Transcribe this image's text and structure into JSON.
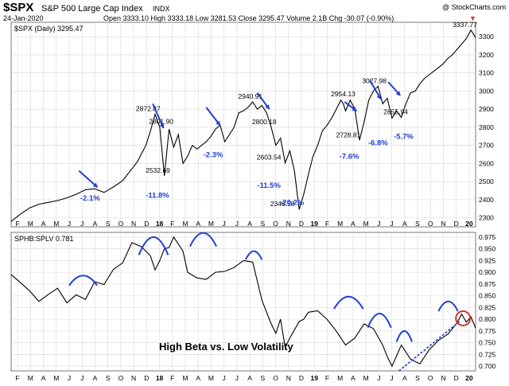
{
  "header": {
    "symbol": "$SPX",
    "name": "S&P 500 Large Cap Index",
    "exchange": "INDX",
    "date": "24-Jan-2020",
    "quote": "Open 3333.10  High 3333.18  Low 3281.53  Close 3295.47  Volume 2.1B  Chg -30.07 (-0.90%)",
    "down_arrow": "▼",
    "watermark": "@ StockCharts.com"
  },
  "colors": {
    "price": "#000000",
    "annotation": "#1f3fd6",
    "highlight": "#d9312b",
    "grid": "#d8d8d8",
    "panel_bg": "#ffffff"
  },
  "chart_data": [
    {
      "type": "line",
      "title": "$SPX (Daily) 3295.47",
      "legend_label": "$SPX (Daily) 3295.47",
      "x_ticks": [
        "F",
        "M",
        "A",
        "M",
        "J",
        "J",
        "A",
        "S",
        "O",
        "N",
        "D",
        "18",
        "F",
        "M",
        "A",
        "M",
        "J",
        "J",
        "A",
        "S",
        "O",
        "N",
        "D",
        "19",
        "F",
        "M",
        "A",
        "M",
        "J",
        "J",
        "A",
        "S",
        "O",
        "N",
        "D",
        "20"
      ],
      "ylim": [
        2250,
        3380
      ],
      "y_ticks": [
        2300,
        2400,
        2500,
        2600,
        2700,
        2800,
        2900,
        3000,
        3100,
        3200,
        3300
      ],
      "series": [
        {
          "name": "$SPX",
          "x": [
            0,
            2,
            4,
            6,
            8,
            10,
            12,
            14,
            16,
            18,
            20,
            22,
            24,
            26,
            27.2,
            28,
            29,
            30,
            31,
            32,
            33,
            34,
            35,
            36,
            37,
            38,
            39,
            40,
            42,
            43,
            44,
            45,
            46,
            47,
            48,
            49,
            50,
            51,
            52,
            53,
            54,
            55,
            56,
            57,
            58,
            59,
            60,
            61,
            62,
            63,
            64,
            65,
            66,
            67,
            68,
            69,
            70,
            71,
            71.5,
            72,
            73,
            74,
            75,
            76,
            77,
            78,
            79,
            80,
            81,
            82,
            83,
            84,
            85,
            86,
            87,
            88,
            89,
            90,
            91,
            92,
            93,
            94,
            95,
            96,
            97,
            98,
            99,
            100
          ],
          "y": [
            2280,
            2320,
            2355,
            2375,
            2385,
            2395,
            2410,
            2430,
            2455,
            2460,
            2440,
            2470,
            2505,
            2570,
            2610,
            2650,
            2700,
            2780,
            2872,
            2800,
            2532,
            2790,
            2690,
            2760,
            2600,
            2640,
            2700,
            2680,
            2720,
            2750,
            2790,
            2812,
            2720,
            2760,
            2800,
            2880,
            2890,
            2910,
            2940,
            2900,
            2920,
            2880,
            2800,
            2700,
            2740,
            2603,
            2670,
            2560,
            2346,
            2430,
            2540,
            2640,
            2700,
            2780,
            2810,
            2850,
            2900,
            2950,
            2930,
            2890,
            2950,
            2900,
            2728,
            2830,
            2950,
            3000,
            3027,
            2930,
            2960,
            2850,
            2890,
            2855,
            2930,
            2990,
            3000,
            3040,
            3070,
            3090,
            3110,
            3130,
            3150,
            3180,
            3200,
            3230,
            3260,
            3290,
            3337,
            3295
          ]
        }
      ],
      "labels": [
        {
          "text": "2872.87",
          "x": 29.5,
          "y": 2872
        },
        {
          "text": "2801.90",
          "x": 32.3,
          "y": 2801
        },
        {
          "text": "2532.69",
          "x": 31.6,
          "y": 2532
        },
        {
          "text": "2940.91",
          "x": 51.5,
          "y": 2940
        },
        {
          "text": "2800.18",
          "x": 54.5,
          "y": 2800
        },
        {
          "text": "2603.54",
          "x": 55.5,
          "y": 2603
        },
        {
          "text": "2346.58",
          "x": 58.4,
          "y": 2346
        },
        {
          "text": "2954.13",
          "x": 71.5,
          "y": 2954
        },
        {
          "text": "2728.81",
          "x": 72.6,
          "y": 2728
        },
        {
          "text": "3027.98",
          "x": 78.2,
          "y": 3027
        },
        {
          "text": "2855.94",
          "x": 82.8,
          "y": 2855
        },
        {
          "text": "3337.77",
          "x": 97.7,
          "y": 3337
        }
      ],
      "drawdowns": [
        {
          "text": "-2.1%",
          "x": 17.0,
          "y": 2395,
          "arrow_from": [
            14.6,
            2560
          ],
          "arrow_to": [
            18.6,
            2468
          ]
        },
        {
          "text": "-11.8%",
          "x": 31.5,
          "y": 2410,
          "arrow_from": [
            30.5,
            2930
          ],
          "arrow_to": [
            32.8,
            2795
          ]
        },
        {
          "text": "-2.3%",
          "x": 43.5,
          "y": 2635,
          "arrow_from": [
            42.0,
            2910
          ],
          "arrow_to": [
            45.0,
            2810
          ]
        },
        {
          "text": "-11.5%",
          "x": 55.5,
          "y": 2465,
          "arrow_from": [
            53.0,
            2990
          ],
          "arrow_to": [
            55.6,
            2900
          ]
        },
        {
          "text": "-20.2%",
          "x": 60.5,
          "y": 2370
        },
        {
          "text": "-7.6%",
          "x": 72.8,
          "y": 2625,
          "arrow_from": [
            71.8,
            2940
          ],
          "arrow_to": [
            74.4,
            2890
          ]
        },
        {
          "text": "-6.8%",
          "x": 79.0,
          "y": 2700,
          "arrow_from": [
            77.2,
            3060
          ],
          "arrow_to": [
            79.6,
            2955
          ]
        },
        {
          "text": "-5.7%",
          "x": 84.5,
          "y": 2735,
          "arrow_from": [
            81.2,
            3050
          ],
          "arrow_to": [
            83.8,
            2975
          ]
        }
      ]
    },
    {
      "type": "line",
      "title": "SPHB:SPLV 0.781",
      "legend_label": "SPHB:SPLV 0.781",
      "annotation": "High Beta vs. Low Volatility",
      "ylim": [
        0.69,
        0.985
      ],
      "y_ticks": [
        0.7,
        0.725,
        0.75,
        0.775,
        0.8,
        0.825,
        0.85,
        0.875,
        0.9,
        0.925,
        0.95,
        0.975
      ],
      "series": [
        {
          "name": "SPHB:SPLV",
          "x": [
            0,
            2,
            4,
            6,
            8,
            10,
            12,
            14,
            16,
            18,
            20,
            22,
            24,
            26,
            28,
            30,
            31,
            32,
            33,
            34,
            35,
            36,
            37,
            38,
            40,
            42,
            44,
            46,
            48,
            50,
            52,
            54,
            56,
            57,
            58,
            59,
            60,
            62,
            63,
            64,
            66,
            68,
            70,
            72,
            74,
            76,
            78,
            80,
            81,
            82,
            84,
            86,
            88,
            90,
            92,
            94,
            95,
            96,
            97,
            98,
            99,
            100
          ],
          "y": [
            0.895,
            0.878,
            0.86,
            0.838,
            0.853,
            0.866,
            0.835,
            0.852,
            0.842,
            0.88,
            0.874,
            0.906,
            0.92,
            0.963,
            0.955,
            0.935,
            0.905,
            0.925,
            0.95,
            0.953,
            0.975,
            0.96,
            0.945,
            0.9,
            0.888,
            0.885,
            0.9,
            0.902,
            0.91,
            0.925,
            0.922,
            0.84,
            0.79,
            0.77,
            0.8,
            0.74,
            0.76,
            0.795,
            0.8,
            0.815,
            0.818,
            0.8,
            0.775,
            0.745,
            0.76,
            0.79,
            0.78,
            0.745,
            0.72,
            0.7,
            0.745,
            0.715,
            0.705,
            0.735,
            0.755,
            0.768,
            0.78,
            0.792,
            0.811,
            0.794,
            0.805,
            0.781
          ]
        }
      ],
      "arcs": [
        {
          "x0": 12.5,
          "x1": 18.5,
          "y": 0.872,
          "peak": 0.893
        },
        {
          "x0": 27.5,
          "x1": 33.8,
          "y": 0.937,
          "peak": 0.975
        },
        {
          "x0": 38.5,
          "x1": 44.2,
          "y": 0.955,
          "peak": 0.984
        },
        {
          "x0": 50.5,
          "x1": 54.0,
          "y": 0.927,
          "peak": 0.945
        },
        {
          "x0": 69.5,
          "x1": 75.8,
          "y": 0.822,
          "peak": 0.848
        },
        {
          "x0": 76.8,
          "x1": 81.8,
          "y": 0.782,
          "peak": 0.812
        },
        {
          "x0": 83.0,
          "x1": 86.3,
          "y": 0.752,
          "peak": 0.775
        },
        {
          "x0": 92.0,
          "x1": 96.2,
          "y": 0.817,
          "peak": 0.838
        }
      ],
      "trendline": {
        "x0": 83.5,
        "y0": 0.69,
        "x1": 96.5,
        "y1": 0.795
      },
      "circle": {
        "x": 97.3,
        "y": 0.802
      }
    }
  ]
}
